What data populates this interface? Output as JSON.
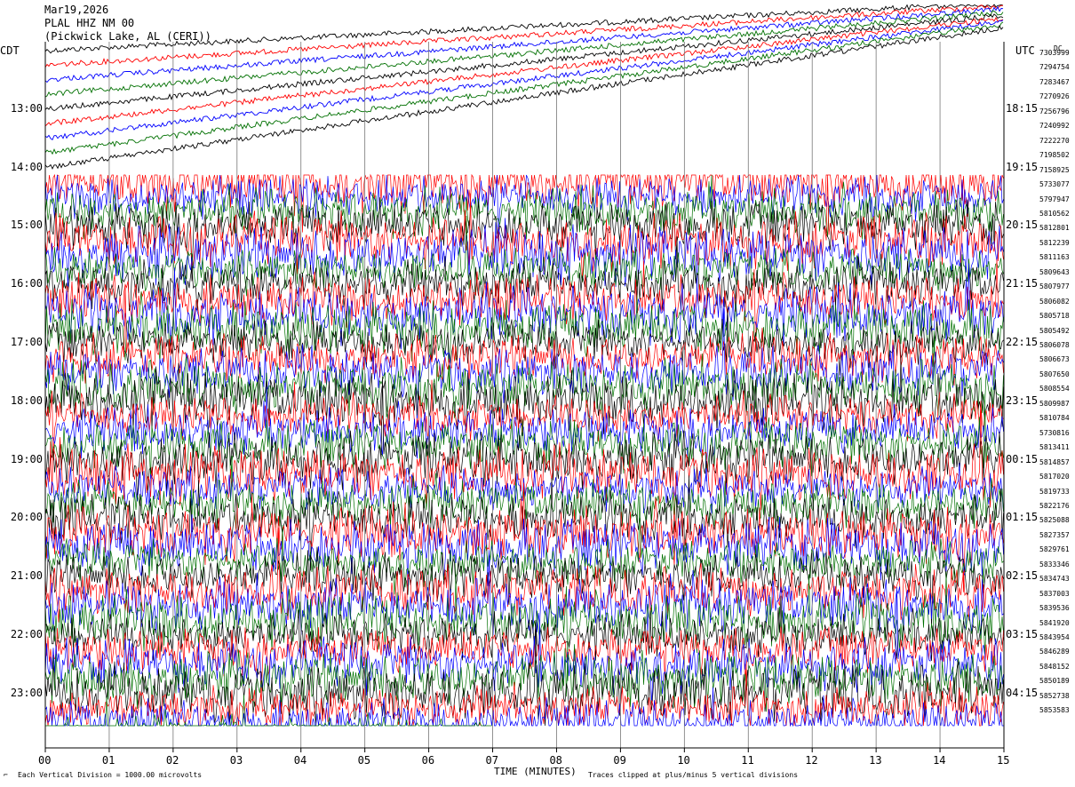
{
  "header": {
    "date": "Mar19,2026",
    "station": "PLAL HHZ NM 00",
    "location": "(Pickwick Lake, AL (CERI))",
    "left_zone": "CDT",
    "right_zone": "UTC",
    "dc_label": "DC"
  },
  "footer": {
    "vertical_division": "Each Vertical Division = 1000.00 microvolts",
    "xlabel": "TIME (MINUTES)",
    "clip_note": "Traces clipped at plus/minus 5 vertical divisions"
  },
  "colors": {
    "trace_cycle": [
      "#000000",
      "#ff0000",
      "#0000ff",
      "#007000"
    ],
    "grid": "#000000"
  },
  "chart_data": {
    "type": "line",
    "title": "PLAL HHZ NM 00",
    "xlabel": "TIME (MINUTES)",
    "x_ticks": [
      "00",
      "01",
      "02",
      "03",
      "04",
      "05",
      "06",
      "07",
      "08",
      "09",
      "10",
      "11",
      "12",
      "13",
      "14",
      "15"
    ],
    "xlim": [
      0,
      15
    ],
    "lines_per_hour": 4,
    "rows": 48,
    "left_hour_labels": [
      "13:00",
      "14:00",
      "15:00",
      "16:00",
      "17:00",
      "18:00",
      "19:00",
      "20:00",
      "21:00",
      "22:00",
      "23:00"
    ],
    "right_hour_labels": [
      "18:15",
      "19:15",
      "20:15",
      "21:15",
      "22:15",
      "23:15",
      "00:15",
      "01:15",
      "02:15",
      "03:15",
      "04:15"
    ],
    "dc_offsets": [
      "7303999",
      "7294754",
      "7283467",
      "7270926",
      "7256796",
      "7240992",
      "7222270",
      "7198502",
      "7158925",
      "5733077",
      "5797947",
      "5810562",
      "5812801",
      "5812239",
      "5811163",
      "5809643",
      "5807977",
      "5806082",
      "5805718",
      "5805492",
      "5806078",
      "5806673",
      "5807650",
      "5808554",
      "5809987",
      "5810784",
      "5730816",
      "5813411",
      "5814857",
      "5817020",
      "5819733",
      "5822176",
      "5825088",
      "5827357",
      "5829761",
      "5833346",
      "5834743",
      "5837003",
      "5839536",
      "5841920",
      "5843954",
      "5846289",
      "5848152",
      "5850189",
      "5852738",
      "5853583"
    ],
    "last_trace_end_minute": 7.0
  }
}
